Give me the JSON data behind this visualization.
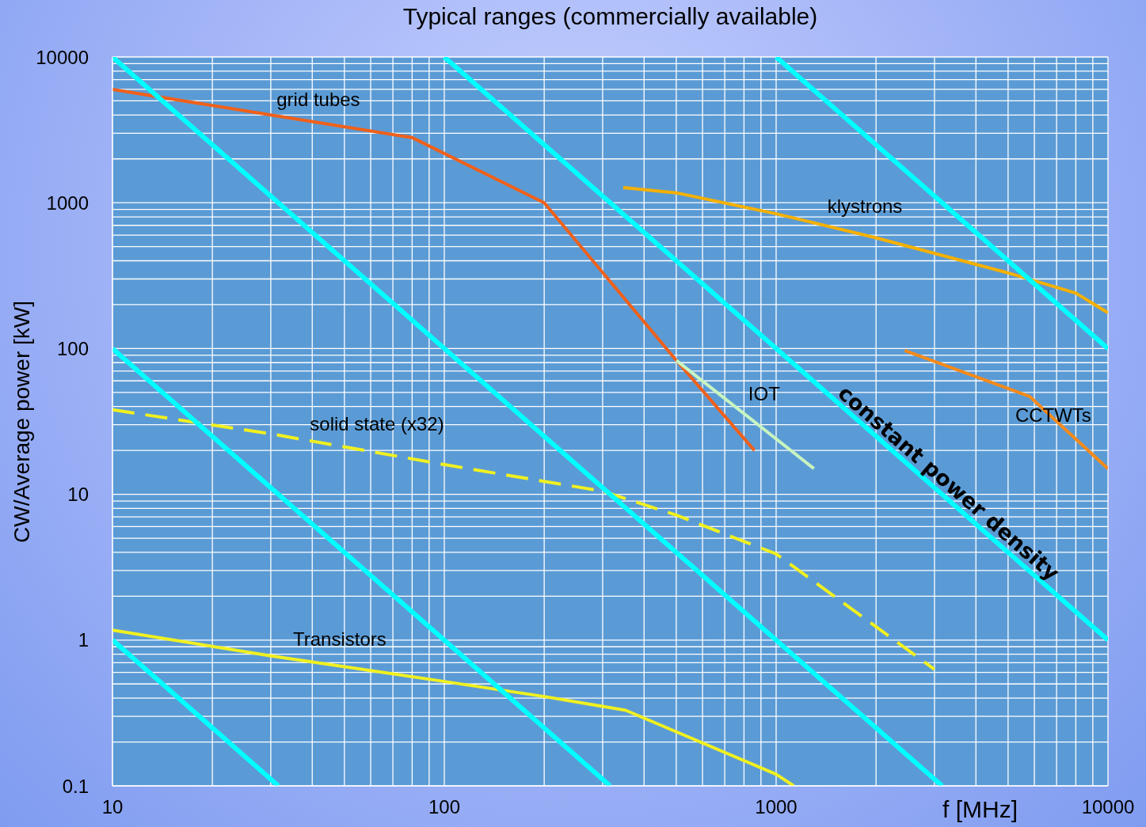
{
  "chart_data": {
    "type": "line",
    "title": "Typical ranges (commercially available)",
    "xlabel": "f [MHz]",
    "ylabel": "CW/Average power [kW]",
    "log": "xy",
    "grid": true,
    "legend": false,
    "marker": "none",
    "xlim": [
      10,
      10000
    ],
    "xticks": [
      10,
      100,
      1000,
      10000
    ],
    "ylim": [
      0.1,
      10000
    ],
    "yticks": [
      0.1,
      1,
      10,
      100,
      1000,
      10000
    ],
    "annotations": [
      "constant power density"
    ],
    "series": [
      {
        "name": "grid tubes",
        "color": "#f0601a",
        "x": [
          10,
          30,
          80,
          200,
          500,
          860
        ],
        "values": [
          6000,
          4000,
          2800,
          1000,
          83,
          20
        ]
      },
      {
        "name": "klystrons",
        "color": "#f5b000",
        "x": [
          346,
          500,
          1000,
          2000,
          5000,
          8000,
          10000
        ],
        "values": [
          1270,
          1170,
          840,
          575,
          330,
          240,
          176
        ]
      },
      {
        "name": "CCTWTs",
        "color": "#f58a1a",
        "x": [
          2440,
          5800,
          10000
        ],
        "values": [
          97,
          47,
          15
        ]
      },
      {
        "name": "IOT",
        "color": "#c8f5c0",
        "x": [
          500,
          1300
        ],
        "values": [
          83,
          15
        ]
      },
      {
        "name": "solid state (x32)",
        "color": "#f0f020",
        "line_style": "dashed",
        "x": [
          10,
          30,
          100,
          300,
          500,
          1000,
          3000
        ],
        "values": [
          38,
          26,
          16,
          10.5,
          7.2,
          3.9,
          0.63
        ]
      },
      {
        "name": "Transistors",
        "color": "#f0f020",
        "x": [
          10,
          30,
          100,
          200,
          352,
          1000,
          1130
        ],
        "values": [
          1.17,
          0.78,
          0.52,
          0.41,
          0.33,
          0.12,
          0.1
        ]
      },
      {
        "color": "#00ffff",
        "x": [
          10,
          31.6
        ],
        "values": [
          1,
          0.1
        ]
      },
      {
        "color": "#00ffff",
        "x": [
          10,
          316
        ],
        "values": [
          100,
          0.1
        ]
      },
      {
        "color": "#00ffff",
        "x": [
          10,
          3162
        ],
        "values": [
          10000,
          0.1
        ]
      },
      {
        "color": "#00ffff",
        "x": [
          100,
          10000
        ],
        "values": [
          10000,
          1
        ]
      },
      {
        "color": "#00ffff",
        "x": [
          1000,
          10000
        ],
        "values": [
          10000,
          100
        ]
      }
    ]
  }
}
